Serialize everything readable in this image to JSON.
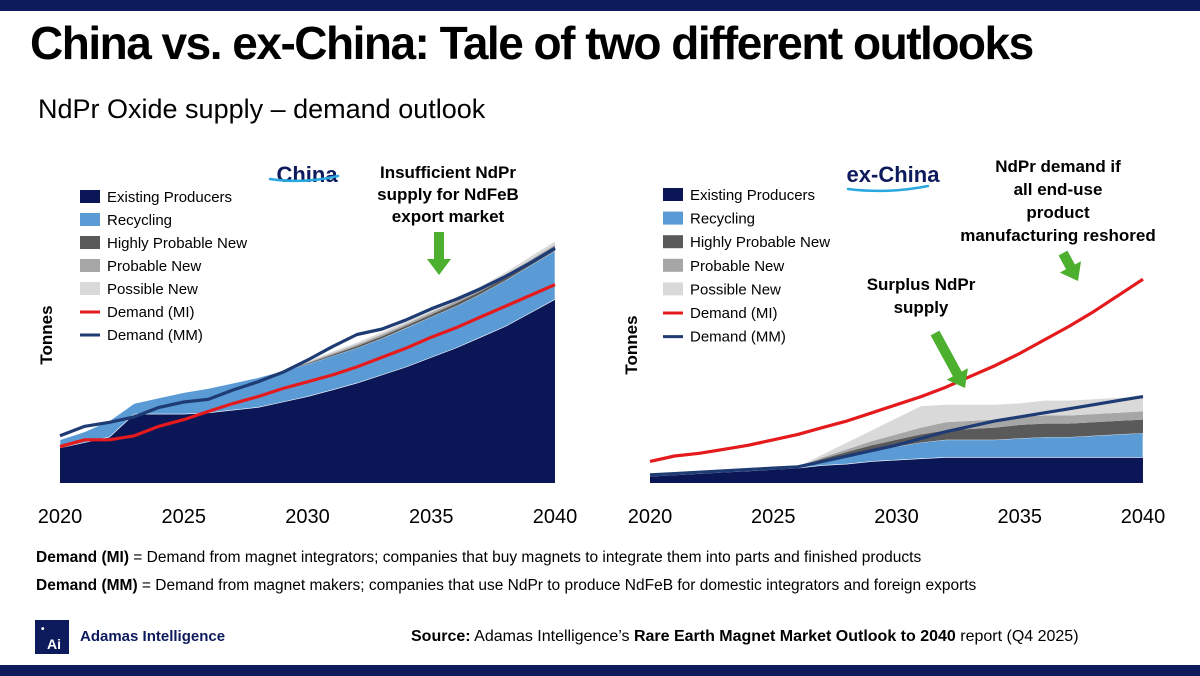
{
  "title": "China vs. ex-China: Tale of two different outlooks",
  "subtitle": "NdPr Oxide supply – demand outlook",
  "colors": {
    "existing": "#0a1656",
    "recycling": "#5b9bd5",
    "highly_probable": "#5a5a5a",
    "probable": "#a6a6a6",
    "possible": "#d9d9d9",
    "demand_mi": "#e41a1c",
    "demand_mm": "#1f3b73",
    "arrow": "#4caf2e",
    "brand": "#0d1a5c"
  },
  "chart_data": [
    {
      "type": "area",
      "title": "China",
      "ylabel": "Tonnes",
      "annotation": "Insufficient NdPr supply for NdFeB export market",
      "x": [
        2020,
        2021,
        2022,
        2023,
        2024,
        2025,
        2026,
        2027,
        2028,
        2029,
        2030,
        2031,
        2032,
        2033,
        2034,
        2035,
        2036,
        2037,
        2038,
        2039,
        2040
      ],
      "xticks": [
        "2020",
        "2025",
        "2030",
        "2035",
        "2040"
      ],
      "ylim": [
        0,
        100
      ],
      "legend": [
        "Existing Producers",
        "Recycling",
        "Highly Probable New",
        "Probable New",
        "Possible New",
        "Demand (MI)",
        "Demand (MM)"
      ],
      "stack": [
        {
          "name": "Existing Producers",
          "values": [
            13,
            15,
            17,
            25.5,
            25.5,
            25.5,
            26,
            27,
            28,
            30,
            32,
            34.5,
            37,
            40,
            43,
            46.5,
            50,
            54,
            58,
            63,
            68
          ]
        },
        {
          "name": "Recycling",
          "values": [
            3,
            4,
            6,
            4,
            6,
            8,
            9,
            10,
            11,
            11.5,
            12,
            12.5,
            13,
            13.5,
            14.5,
            15,
            15.5,
            16,
            17,
            17.5,
            18
          ]
        },
        {
          "name": "Highly Probable New",
          "values": [
            0,
            0,
            0,
            0,
            0,
            0,
            0,
            0,
            0,
            0,
            0.3,
            0.5,
            0.7,
            0.8,
            0.8,
            0.9,
            1,
            1,
            1.1,
            1.2,
            1.2
          ]
        },
        {
          "name": "Probable New",
          "values": [
            0,
            0,
            0,
            0,
            0,
            0,
            0,
            0,
            0,
            0,
            0.3,
            0.5,
            0.6,
            0.7,
            0.7,
            0.8,
            0.8,
            0.9,
            0.9,
            1,
            1
          ]
        },
        {
          "name": "Possible New",
          "values": [
            0,
            0,
            0,
            0,
            0,
            0,
            0,
            0,
            0,
            0,
            0.4,
            0.6,
            0.7,
            0.8,
            0.8,
            0.9,
            0.9,
            1,
            1,
            1.1,
            1.2
          ]
        }
      ],
      "lines": [
        {
          "name": "Demand (MI)",
          "values": [
            13.5,
            16,
            16,
            17.5,
            21,
            23.5,
            26.5,
            29.5,
            32,
            35,
            37.5,
            40,
            43,
            46.5,
            50,
            54,
            57.5,
            61.5,
            65.5,
            69.5,
            73.5
          ]
        },
        {
          "name": "Demand (MM)",
          "values": [
            17.5,
            21,
            22.5,
            24.5,
            28,
            30,
            31,
            34.5,
            37.5,
            41,
            45.5,
            50.5,
            55,
            57,
            60.5,
            64.5,
            68,
            72,
            76.5,
            81.5,
            87
          ]
        }
      ]
    },
    {
      "type": "area",
      "title": "ex-China",
      "ylabel": "Tonnes",
      "annotations": [
        "NdPr demand if all end-use product manufacturing reshored",
        "Surplus NdPr supply"
      ],
      "x": [
        2020,
        2021,
        2022,
        2023,
        2024,
        2025,
        2026,
        2027,
        2028,
        2029,
        2030,
        2031,
        2032,
        2033,
        2034,
        2035,
        2036,
        2037,
        2038,
        2039,
        2040
      ],
      "xticks": [
        "2020",
        "2025",
        "2030",
        "2035",
        "2040"
      ],
      "ylim": [
        0,
        100
      ],
      "legend": [
        "Existing Producers",
        "Recycling",
        "Highly Probable New",
        "Probable New",
        "Possible New",
        "Demand (MI)",
        "Demand (MM)"
      ],
      "stack": [
        {
          "name": "Existing Producers",
          "values": [
            2.5,
            3,
            3.5,
            4,
            4.5,
            5,
            5.5,
            6.5,
            7,
            8,
            8.5,
            9,
            9.5,
            9.5,
            9.5,
            9.5,
            9.5,
            9.5,
            9.5,
            9.5,
            9.5
          ]
        },
        {
          "name": "Recycling",
          "values": [
            0,
            0,
            0,
            0,
            0,
            0,
            0.5,
            1.5,
            3,
            4,
            5,
            6,
            6.5,
            6.5,
            6.5,
            7,
            7.5,
            7.5,
            8,
            8.5,
            9
          ]
        },
        {
          "name": "Highly Probable New",
          "values": [
            0,
            0,
            0,
            0,
            0,
            0,
            0,
            1,
            1.5,
            2,
            2.5,
            3,
            3.5,
            4,
            4.5,
            5,
            5,
            5,
            5,
            5,
            5
          ]
        },
        {
          "name": "Probable New",
          "values": [
            0,
            0,
            0,
            0,
            0,
            0,
            0,
            0.5,
            1,
            1.5,
            2,
            2.5,
            3,
            3,
            3,
            3,
            3,
            3,
            3,
            3,
            3
          ]
        },
        {
          "name": "Possible New",
          "values": [
            0,
            0,
            0,
            0,
            0,
            0,
            0,
            1,
            2.5,
            4,
            6,
            8,
            6.5,
            6,
            5.5,
            5,
            5.5,
            5.5,
            5.5,
            5.5,
            5.5
          ]
        }
      ],
      "lines": [
        {
          "name": "Demand (MI)",
          "values": [
            8,
            10,
            11,
            12.5,
            14,
            16,
            18,
            20.5,
            23,
            26,
            29,
            32,
            35.5,
            39.5,
            43.5,
            48,
            53,
            58,
            63.5,
            69.5,
            75.5
          ]
        },
        {
          "name": "Demand (MM)",
          "values": [
            3,
            3.5,
            4,
            4.5,
            5,
            5.5,
            6,
            8,
            10,
            12,
            14,
            16.5,
            19,
            21,
            23,
            24.5,
            26,
            27.5,
            29,
            30.5,
            32
          ]
        }
      ]
    }
  ],
  "footnotes": [
    {
      "term": "Demand (MI)",
      "text": " = Demand from magnet integrators; companies that buy magnets to integrate them into parts and finished products"
    },
    {
      "term": "Demand (MM)",
      "text": " = Demand from magnet makers; companies that use NdPr to produce NdFeB for domestic integrators and foreign exports"
    }
  ],
  "logo": {
    "mark": "Ai",
    "brand": "Adamas Intelligence"
  },
  "source": {
    "label": "Source:",
    "pre": " Adamas Intelligence’s ",
    "report": "Rare Earth Magnet Market Outlook to 2040",
    "post": " report (Q4 2025)"
  }
}
